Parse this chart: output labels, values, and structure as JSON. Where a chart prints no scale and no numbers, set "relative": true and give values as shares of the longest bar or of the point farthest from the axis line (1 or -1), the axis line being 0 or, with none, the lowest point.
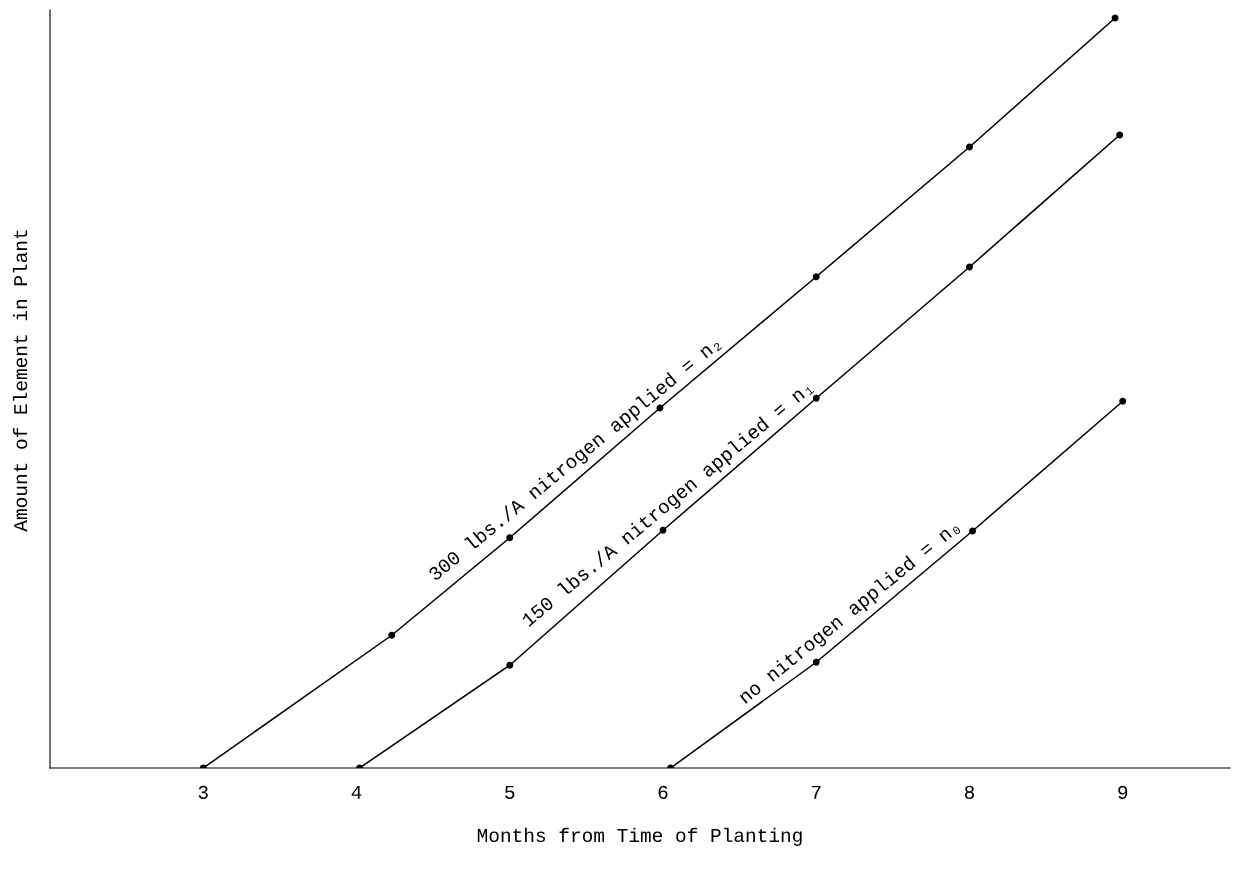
{
  "chart_data": {
    "type": "line",
    "relative": true,
    "xlabel": "Months from Time of Planting",
    "ylabel": "Amount of Element in Plant",
    "xlim": [
      2.0,
      9.7
    ],
    "xticks": [
      3,
      4,
      5,
      6,
      7,
      8,
      9
    ],
    "marker": "circle",
    "line_style": "solid",
    "grid": false,
    "series": [
      {
        "name": "300 lbs./A nitrogen applied = n₂",
        "color": "#000000",
        "x": [
          3.0,
          4.23,
          5.0,
          5.98,
          7.0,
          8.0,
          8.95
        ],
        "values": [
          0,
          0.177,
          0.307,
          0.48,
          0.655,
          0.828,
          1.0
        ]
      },
      {
        "name": "150 lbs./A nitrogen applied = n₁",
        "color": "#000000",
        "x": [
          4.02,
          5.0,
          6.0,
          7.0,
          8.0,
          8.98
        ],
        "values": [
          0,
          0.137,
          0.317,
          0.493,
          0.668,
          0.844
        ]
      },
      {
        "name": "no nitrogen applied = n₀",
        "color": "#000000",
        "x": [
          6.05,
          7.0,
          8.02,
          9.0
        ],
        "values": [
          0,
          0.141,
          0.316,
          0.489
        ]
      }
    ]
  }
}
